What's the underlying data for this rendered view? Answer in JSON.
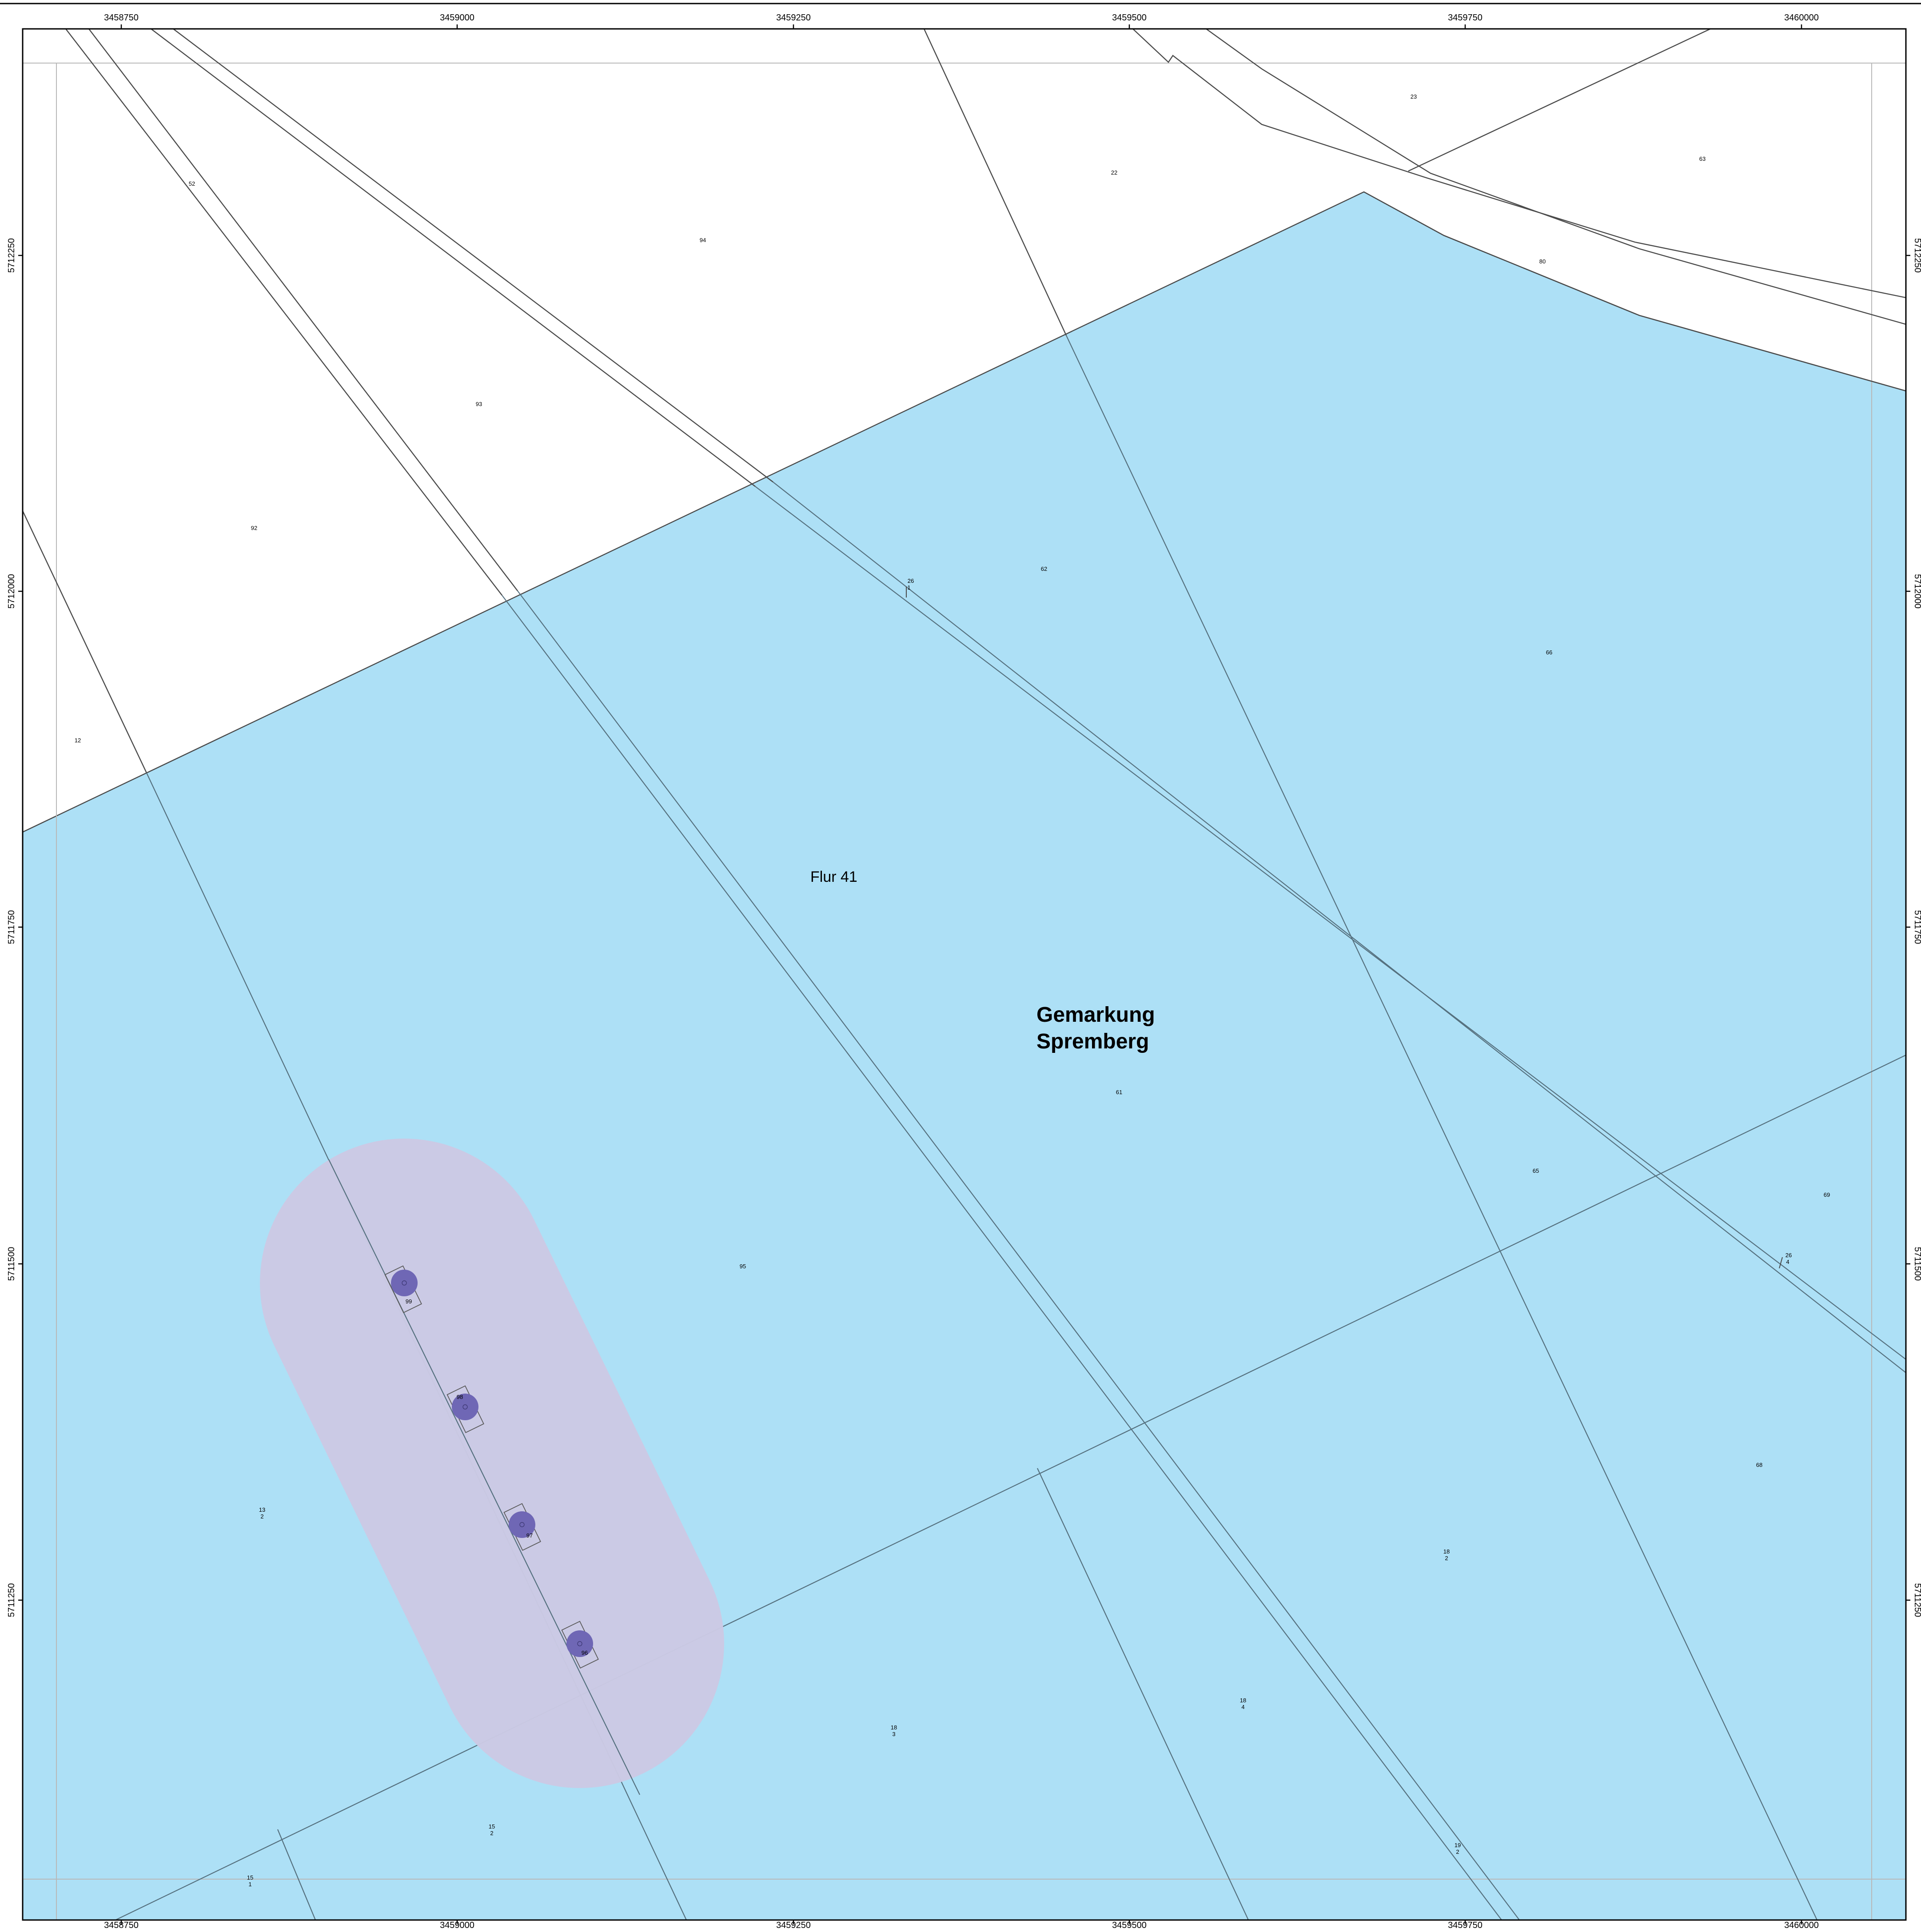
{
  "map": {
    "x_ticks_top": [
      "3458750",
      "3459000",
      "3459250",
      "3459500",
      "3459750",
      "3460000"
    ],
    "x_ticks_bottom": [
      "3458750",
      "3459000",
      "3459250",
      "3459500",
      "3459750",
      "3460000"
    ],
    "y_ticks_left": [
      "5712250",
      "5712000",
      "5711750",
      "5711500",
      "5711250"
    ],
    "y_ticks_right": [
      "5712250",
      "5712000",
      "5711750",
      "5711500",
      "5711250"
    ],
    "flur_label": "Flur 41",
    "gemarkung_line1": "Gemarkung",
    "gemarkung_line2": "Spremberg",
    "parcels": {
      "p52": "52",
      "p94": "94",
      "p22": "22",
      "p23": "23",
      "p63": "63",
      "p80": "80",
      "p93": "93",
      "p92": "92",
      "p12": "12",
      "p26a": "26",
      "p26a_sub": "1",
      "p62": "62",
      "p66": "66",
      "p61": "61",
      "p65": "65",
      "p69": "69",
      "p26b": "26",
      "p26b_sub": "4",
      "p95": "95",
      "p99": "99",
      "p98": "98",
      "p97": "97",
      "p96": "96",
      "p68": "68",
      "p13_num": "13",
      "p13_sub": "2",
      "p18a_num": "18",
      "p18a_sub": "2",
      "p18b_num": "18",
      "p18b_sub": "4",
      "p18c_num": "18",
      "p18c_sub": "3",
      "p15_num": "15",
      "p15_sub": "2",
      "p19_num": "19",
      "p19_sub": "2",
      "p15b_num": "15",
      "p15b_sub": "1"
    },
    "colors": {
      "area_fill": "#ade0f6",
      "buffer_fill": "#cccae5",
      "turbine_fill": "#6f67b5"
    }
  }
}
